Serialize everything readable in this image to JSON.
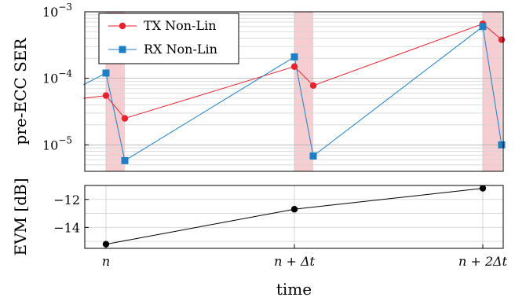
{
  "chart_data": [
    {
      "type": "line",
      "ylabel": "pre-ECC SER",
      "yscale": "log",
      "ylim": [
        4e-06,
        0.001
      ],
      "yticks": [
        {
          "value": 1e-05,
          "base": "10",
          "exp": "−5"
        },
        {
          "value": 0.0001,
          "base": "10",
          "exp": "−4"
        },
        {
          "value": 0.001,
          "base": "10",
          "exp": "−3"
        }
      ],
      "grid": true,
      "legend": {
        "placement": "top-left",
        "entries": [
          {
            "name": "TX Non-Lin",
            "color": "#e8222e",
            "marker": "circle"
          },
          {
            "name": "RX Non-Lin",
            "color": "#1f7fc4",
            "marker": "square"
          }
        ]
      },
      "shaded_bands": [
        {
          "x0": 0.0,
          "x1": 0.1,
          "color": "#f5c6c9"
        },
        {
          "x0": 1.0,
          "x1": 1.1,
          "color": "#f5c6c9"
        },
        {
          "x0": 2.0,
          "x1": 2.1,
          "color": "#f5c6c9"
        }
      ],
      "series": [
        {
          "name": "TX Non-Lin",
          "color": "#e8222e",
          "marker": "circle",
          "x": [
            -0.12,
            0.0,
            0.1,
            1.0,
            1.1,
            2.0,
            2.1
          ],
          "y": [
            5e-05,
            5.5e-05,
            2.5e-05,
            0.00015,
            7.8e-05,
            0.00066,
            0.00038
          ]
        },
        {
          "name": "RX Non-Lin",
          "color": "#1f7fc4",
          "marker": "square",
          "x": [
            -0.12,
            0.0,
            0.1,
            1.0,
            1.1,
            2.0,
            2.1
          ],
          "y": [
            8e-05,
            0.00012,
            5.8e-06,
            0.00021,
            6.8e-06,
            0.0006,
            1e-05
          ]
        }
      ]
    },
    {
      "type": "line",
      "ylabel": "EVM [dB]",
      "ylim": [
        -15.5,
        -11
      ],
      "yticks": [
        {
          "value": -14,
          "label": "−14"
        },
        {
          "value": -12,
          "label": "−12"
        }
      ],
      "grid": true,
      "xlabel": "time",
      "xticks": [
        {
          "value": 0,
          "label": "n"
        },
        {
          "value": 1,
          "label": "n + Δt"
        },
        {
          "value": 2,
          "label": "n + 2Δt"
        }
      ],
      "series": [
        {
          "color": "#000000",
          "marker": "circle",
          "x": [
            0,
            1,
            2
          ],
          "y": [
            -15.2,
            -12.7,
            -11.2
          ]
        }
      ]
    }
  ]
}
